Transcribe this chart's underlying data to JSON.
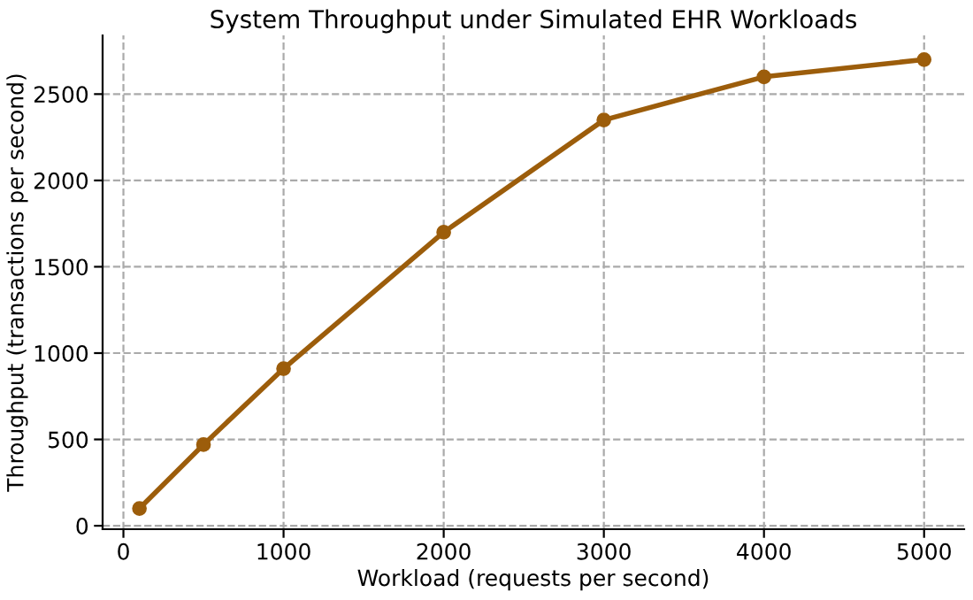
{
  "chart_data": {
    "type": "line",
    "title": "System Throughput under Simulated EHR Workloads",
    "xlabel": "Workload (requests per second)",
    "ylabel": "Throughput (transactions per second)",
    "x": [
      100,
      500,
      1000,
      2000,
      3000,
      4000,
      5000
    ],
    "series": [
      {
        "color": "#9c5d0b",
        "values": [
          100,
          470,
          910,
          1700,
          2350,
          2600,
          2700
        ]
      }
    ],
    "xlim": [
      -130,
      5250
    ],
    "ylim": [
      -20,
      2840
    ],
    "xticks": [
      0,
      1000,
      2000,
      3000,
      4000,
      5000
    ],
    "yticks": [
      0,
      500,
      1000,
      1500,
      2000,
      2500
    ],
    "grid": true,
    "marker": "circle",
    "line_style": "solid"
  }
}
